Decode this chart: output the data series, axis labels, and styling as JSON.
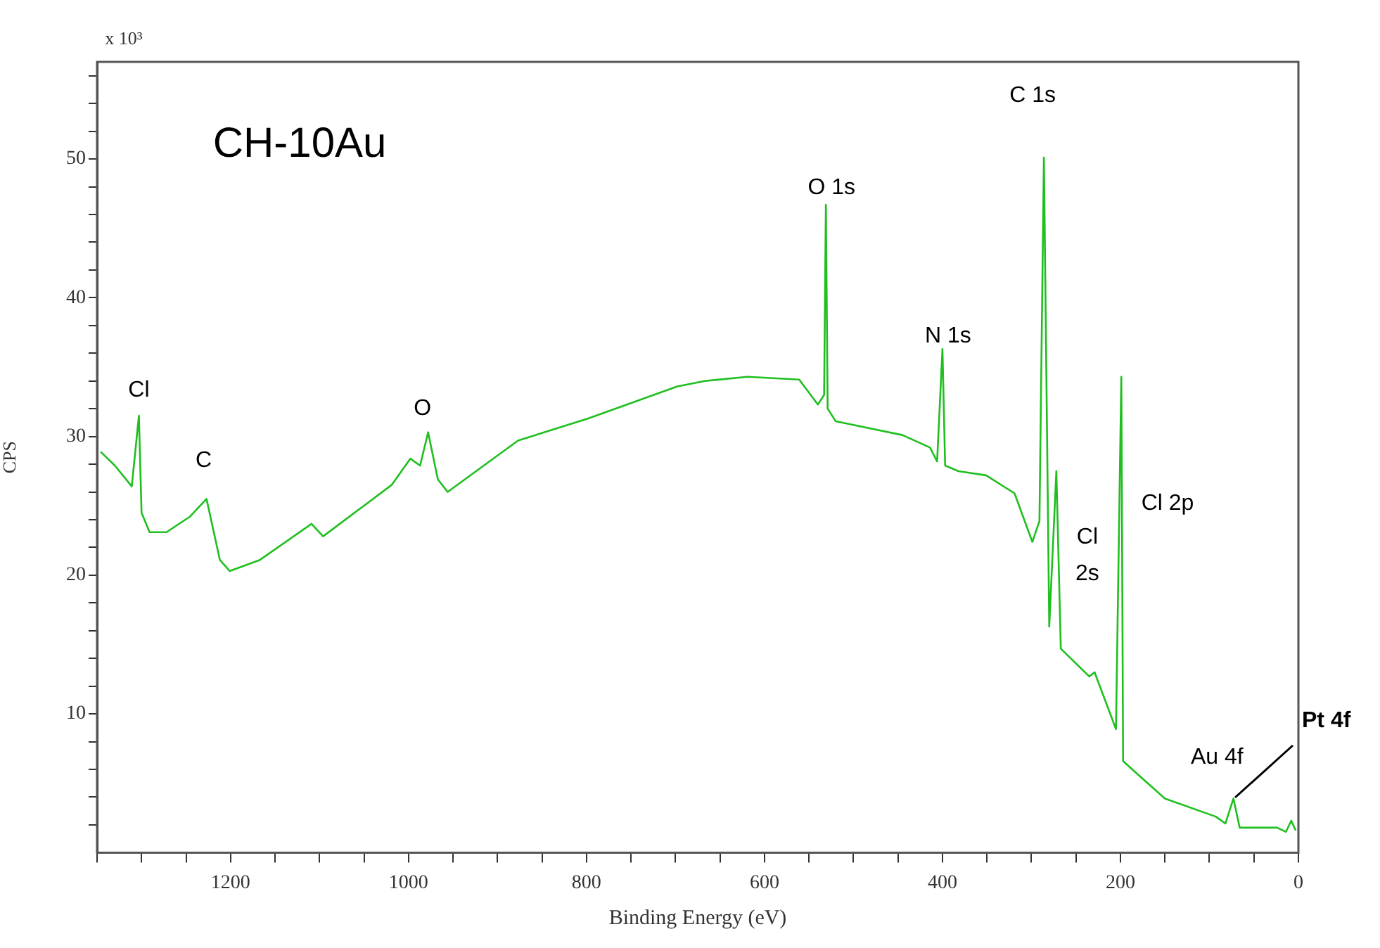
{
  "chart_data": {
    "type": "line",
    "xlabel": "Binding Energy (eV)",
    "ylabel": "CPS",
    "annotations": [
      "x 10³",
      "CH-10Au",
      {
        "text": "Pt 4f",
        "x": 73,
        "y": 3.9
      },
      {
        "text": "Cl",
        "x": 1303,
        "y": 31.5
      },
      {
        "text": "C",
        "x": 1227,
        "y": 25.5
      },
      {
        "text": "O",
        "x": 978,
        "y": 30.3
      },
      {
        "text": "O 1s",
        "x": 531,
        "y": 46.7
      },
      {
        "text": "N 1s",
        "x": 400,
        "y": 36.3
      },
      {
        "text": "C 1s",
        "x": 286,
        "y": 50.1
      },
      {
        "text": "Cl\n2s",
        "x": 272,
        "y": 27.5
      },
      "Cl 2p",
      {
        "text": "Au 4f",
        "x": 82,
        "y": 2.1
      }
    ],
    "series": [
      {
        "color": "#1fbf1f",
        "x": [
          1346,
          1330,
          1311,
          1303,
          1300,
          1291,
          1272,
          1246,
          1227,
          1212,
          1201,
          1167,
          1109,
          1096,
          1046,
          1019,
          998,
          987,
          978,
          967,
          956,
          877,
          798,
          698,
          667,
          619,
          561,
          540,
          533,
          531,
          529,
          520,
          445,
          414,
          406,
          400,
          397,
          382,
          351,
          319,
          299,
          291,
          286,
          280,
          272,
          267,
          235,
          229,
          205,
          199,
          197,
          185,
          150,
          93,
          82,
          73,
          66,
          24,
          14,
          8,
          3
        ],
        "values": [
          28.9,
          27.9,
          26.4,
          31.5,
          24.5,
          23.1,
          23.1,
          24.2,
          25.5,
          21.1,
          20.3,
          21.1,
          23.7,
          22.8,
          25.2,
          26.5,
          28.4,
          27.9,
          30.3,
          26.9,
          26.0,
          29.7,
          31.3,
          33.6,
          34.0,
          34.3,
          34.1,
          32.3,
          33.0,
          46.7,
          32.0,
          31.1,
          30.1,
          29.2,
          28.2,
          36.3,
          27.9,
          27.5,
          27.2,
          25.9,
          22.4,
          23.9,
          50.1,
          16.3,
          27.5,
          14.7,
          12.7,
          13.0,
          8.9,
          34.3,
          6.6,
          5.9,
          3.9,
          2.6,
          2.1,
          3.9,
          1.8,
          1.8,
          1.5,
          2.3,
          1.6
        ]
      }
    ],
    "xlim": [
      1350,
      0
    ],
    "xticks": [
      {
        "value": 1350,
        "label": null
      },
      {
        "value": 1300,
        "label": null
      },
      {
        "value": 1250,
        "label": null
      },
      1200,
      {
        "value": 1150,
        "label": null
      },
      {
        "value": 1100,
        "label": null
      },
      {
        "value": 1050,
        "label": null
      },
      1000,
      {
        "value": 950,
        "label": null
      },
      {
        "value": 900,
        "label": null
      },
      {
        "value": 850,
        "label": null
      },
      800,
      {
        "value": 750,
        "label": null
      },
      {
        "value": 700,
        "label": null
      },
      {
        "value": 650,
        "label": null
      },
      600,
      {
        "value": 550,
        "label": null
      },
      {
        "value": 500,
        "label": null
      },
      {
        "value": 450,
        "label": null
      },
      400,
      {
        "value": 350,
        "label": null
      },
      {
        "value": 300,
        "label": null
      },
      {
        "value": 250,
        "label": null
      },
      200,
      {
        "value": 150,
        "label": null
      },
      {
        "value": 100,
        "label": null
      },
      {
        "value": 50,
        "label": null
      },
      0
    ],
    "ylim": [
      0,
      57
    ],
    "yticks": [
      {
        "value": 2,
        "label": null
      },
      {
        "value": 4,
        "label": null
      },
      {
        "value": 6,
        "label": null
      },
      {
        "value": 8,
        "label": null
      },
      10,
      {
        "value": 12,
        "label": null
      },
      {
        "value": 14,
        "label": null
      },
      {
        "value": 16,
        "label": null
      },
      {
        "value": 18,
        "label": null
      },
      20,
      {
        "value": 22,
        "label": null
      },
      {
        "value": 24,
        "label": null
      },
      {
        "value": 26,
        "label": null
      },
      {
        "value": 28,
        "label": null
      },
      30,
      {
        "value": 32,
        "label": null
      },
      {
        "value": 34,
        "label": null
      },
      {
        "value": 36,
        "label": null
      },
      {
        "value": 38,
        "label": null
      },
      40,
      {
        "value": 42,
        "label": null
      },
      {
        "value": 44,
        "label": null
      },
      {
        "value": 46,
        "label": null
      },
      {
        "value": 48,
        "label": null
      },
      50,
      {
        "value": 52,
        "label": null
      },
      {
        "value": 54,
        "label": null
      },
      {
        "value": 56,
        "label": null
      }
    ],
    "grid": false,
    "legend": false,
    "marker": "none",
    "line_style": "solid"
  }
}
